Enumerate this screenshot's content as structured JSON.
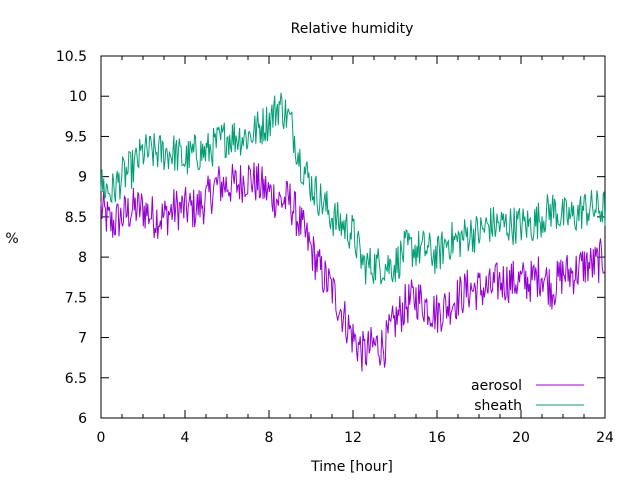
{
  "chart_data": {
    "type": "line",
    "title": "Relative humidity",
    "xlabel": "Time [hour]",
    "ylabel": "%",
    "xlim": [
      0,
      24
    ],
    "ylim": [
      6,
      10.5
    ],
    "x_ticks": [
      0,
      4,
      8,
      12,
      16,
      20,
      24
    ],
    "y_ticks": [
      6,
      6.5,
      7,
      7.5,
      8,
      8.5,
      9,
      9.5,
      10,
      10.5
    ],
    "y_tick_labels": [
      "6",
      "6.5",
      "7",
      "7.5",
      "8",
      "8.5",
      "9",
      "9.5",
      "10",
      "10.5"
    ],
    "grid": false,
    "legend_position": "bottom-right",
    "series": [
      {
        "name": "aerosol",
        "color": "#9400d3",
        "x": [
          0,
          0.5,
          1,
          1.5,
          2,
          2.5,
          3,
          3.5,
          4,
          4.5,
          5,
          5.5,
          6,
          6.5,
          7,
          7.5,
          8,
          8.5,
          9,
          9.5,
          10,
          10.5,
          11,
          11.5,
          12,
          12.5,
          13,
          13.5,
          14,
          14.5,
          15,
          15.5,
          16,
          16.5,
          17,
          17.5,
          18,
          18.5,
          19,
          19.5,
          20,
          20.5,
          21,
          21.5,
          22,
          22.5,
          23,
          23.5,
          24
        ],
        "y": [
          8.6,
          8.4,
          8.5,
          8.6,
          8.6,
          8.5,
          8.5,
          8.6,
          8.6,
          8.6,
          8.7,
          8.9,
          8.9,
          8.9,
          9.0,
          8.9,
          8.8,
          8.7,
          8.7,
          8.4,
          8.1,
          7.8,
          7.6,
          7.3,
          7.0,
          6.8,
          6.9,
          6.9,
          7.2,
          7.4,
          7.5,
          7.4,
          7.3,
          7.4,
          7.5,
          7.6,
          7.6,
          7.6,
          7.7,
          7.7,
          7.7,
          7.7,
          7.8,
          7.6,
          7.8,
          7.8,
          7.9,
          7.9,
          8.0
        ]
      },
      {
        "name": "sheath",
        "color": "#009e73",
        "x": [
          0,
          0.5,
          1,
          1.5,
          2,
          2.5,
          3,
          3.5,
          4,
          4.5,
          5,
          5.5,
          6,
          6.5,
          7,
          7.5,
          8,
          8.5,
          9,
          9.5,
          10,
          10.5,
          11,
          11.5,
          12,
          12.5,
          13,
          13.5,
          14,
          14.5,
          15,
          15.5,
          16,
          16.5,
          17,
          17.5,
          18,
          18.5,
          19,
          19.5,
          20,
          20.5,
          21,
          21.5,
          22,
          22.5,
          23,
          23.5,
          24
        ],
        "y": [
          8.9,
          8.8,
          9.0,
          9.1,
          9.3,
          9.3,
          9.3,
          9.3,
          9.2,
          9.3,
          9.3,
          9.4,
          9.5,
          9.5,
          9.5,
          9.6,
          9.7,
          9.9,
          9.7,
          9.2,
          8.9,
          8.7,
          8.5,
          8.4,
          8.3,
          7.9,
          7.9,
          7.9,
          7.9,
          8.1,
          8.1,
          8.1,
          8.0,
          8.2,
          8.2,
          8.3,
          8.3,
          8.4,
          8.4,
          8.4,
          8.4,
          8.4,
          8.5,
          8.6,
          8.5,
          8.5,
          8.6,
          8.6,
          8.6
        ]
      }
    ]
  }
}
